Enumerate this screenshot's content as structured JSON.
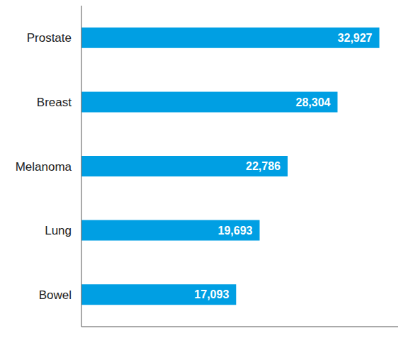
{
  "chart_data": {
    "type": "bar",
    "orientation": "horizontal",
    "categories": [
      "Prostate",
      "Breast",
      "Melanoma",
      "Lung",
      "Bowel"
    ],
    "values": [
      32927,
      28304,
      22786,
      19693,
      17093
    ],
    "value_labels": [
      "32,927",
      "28,304",
      "22,786",
      "19,693",
      "17,093"
    ],
    "color": "#009fe3",
    "xlim": [
      0,
      35000
    ],
    "data_labels": true,
    "tick_labels": "y",
    "grid": false
  }
}
